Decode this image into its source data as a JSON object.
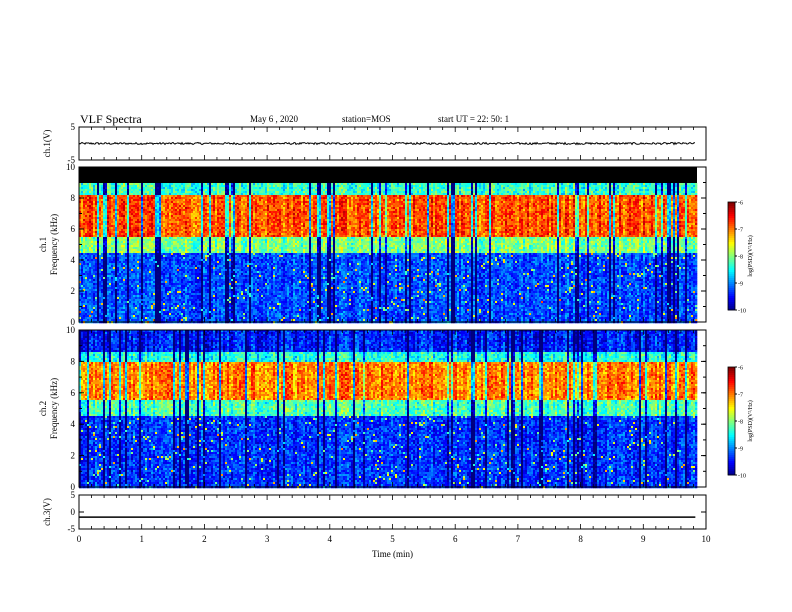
{
  "header": {
    "title": "VLF Spectra",
    "date": "May 6 , 2020",
    "station": "station=MOS",
    "start_ut": "start UT = 22: 50: 1"
  },
  "chart_data": [
    {
      "type": "line",
      "panel": "ch.1(V)",
      "ylabel": "ch.1(V)",
      "ylim": [
        -5,
        5
      ],
      "yticks": [
        "5",
        "-5"
      ],
      "xlim": [
        0,
        10
      ],
      "series": [
        {
          "x": [
            0,
            9.83
          ],
          "y": [
            0,
            0
          ]
        }
      ]
    },
    {
      "type": "heatmap",
      "panel": "ch.1",
      "ylabel": [
        "ch.1",
        "Frequency (kHz)"
      ],
      "ylim": [
        0,
        10
      ],
      "yticks": [
        "0",
        "2",
        "4",
        "6",
        "8",
        "10"
      ],
      "xlim": [
        0,
        10
      ],
      "data_extent_min": 9.83,
      "colorbar": {
        "label": "log(PSD)(V²/Hz)",
        "range": [
          -10,
          -6
        ],
        "ticks": [
          "-6",
          "-7",
          "-8",
          "-9",
          "-10"
        ]
      },
      "bands": [
        {
          "freq_khz": [
            0,
            4.5
          ],
          "log_psd": -9.2
        },
        {
          "freq_khz": [
            4.5,
            5.5
          ],
          "log_psd": -8.0
        },
        {
          "freq_khz": [
            5.5,
            8.2
          ],
          "log_psd": -6.8
        },
        {
          "freq_khz": [
            8.2,
            9.0
          ],
          "log_psd": -8.3
        },
        {
          "freq_khz": [
            9.0,
            10
          ],
          "log_psd": null
        }
      ]
    },
    {
      "type": "heatmap",
      "panel": "ch.2",
      "ylabel": [
        "ch.2",
        "Frequency (kHz)"
      ],
      "ylim": [
        0,
        10
      ],
      "yticks": [
        "0",
        "2",
        "4",
        "6",
        "8",
        "10"
      ],
      "xlim": [
        0,
        10
      ],
      "data_extent_min": 9.83,
      "colorbar": {
        "label": "log(PSD)(V²/Hz)",
        "range": [
          -10,
          -6
        ],
        "ticks": [
          "-6",
          "-7",
          "-8",
          "-9",
          "-10"
        ]
      },
      "bands": [
        {
          "freq_khz": [
            0,
            4.5
          ],
          "log_psd": -9.3
        },
        {
          "freq_khz": [
            4.5,
            5.5
          ],
          "log_psd": -8.2
        },
        {
          "freq_khz": [
            5.5,
            7.9
          ],
          "log_psd": -7.0
        },
        {
          "freq_khz": [
            7.9,
            8.6
          ],
          "log_psd": -8.4
        },
        {
          "freq_khz": [
            8.6,
            10
          ],
          "log_psd": -9.4
        }
      ]
    },
    {
      "type": "line",
      "panel": "ch.3(V)",
      "ylabel": "ch.3(V)",
      "ylim": [
        -5,
        5
      ],
      "yticks": [
        "5",
        "0",
        "-5"
      ],
      "xlim": [
        0,
        10
      ],
      "xlabel": "Time (min)",
      "xticks": [
        "0",
        "1",
        "2",
        "3",
        "4",
        "5",
        "6",
        "7",
        "8",
        "9",
        "10"
      ],
      "series": [
        {
          "x": [
            0,
            9.83
          ],
          "y": [
            -1.5,
            -1.5
          ]
        }
      ]
    }
  ]
}
